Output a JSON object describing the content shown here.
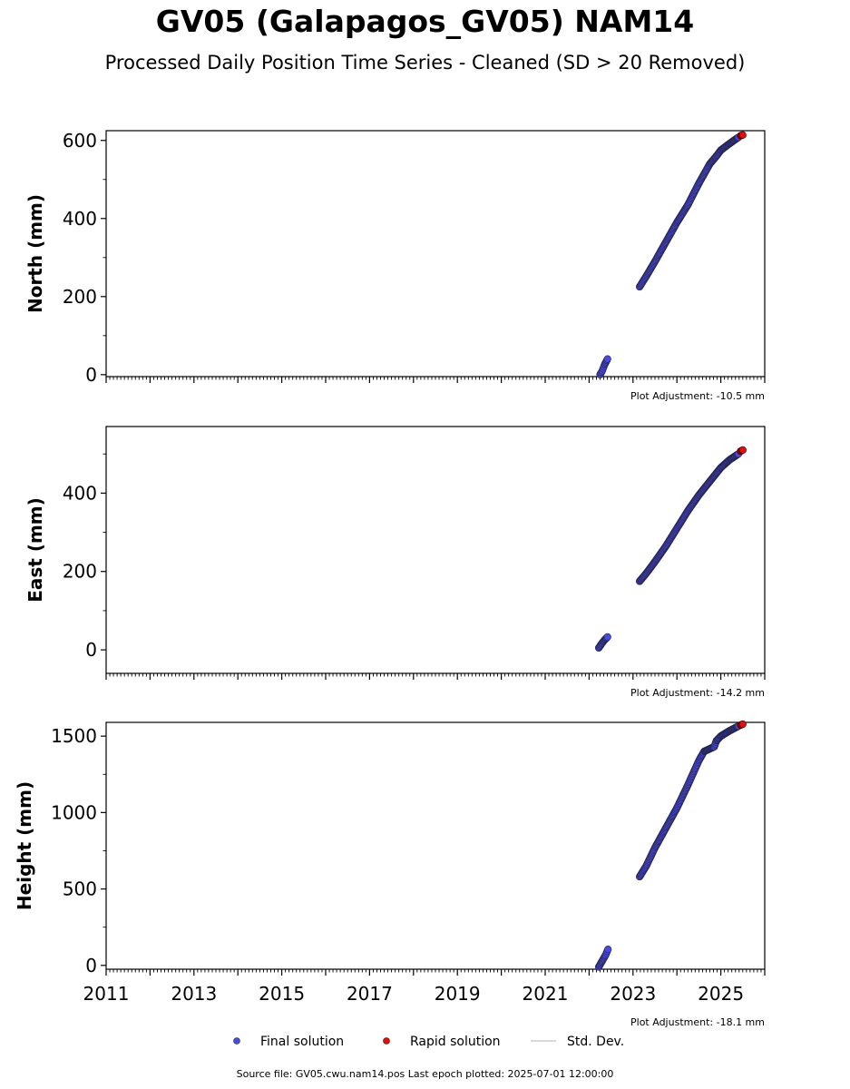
{
  "title": "GV05 (Galapagos_GV05) NAM14",
  "subtitle": "Processed Daily Position Time Series - Cleaned (SD > 20 Removed)",
  "footer": "Source file: GV05.cwu.nam14.pos  Last epoch plotted: 2025-07-01 12:00:00",
  "legend": {
    "final_label": "Final solution",
    "rapid_label": "Rapid solution",
    "std_label": "Std. Dev."
  },
  "colors": {
    "final": "#4a4adf",
    "rapid": "#e01010",
    "std": "#cccccc",
    "edge": "#222244"
  },
  "chart_data": [
    {
      "type": "scatter",
      "ylabel": "North (mm)",
      "adjustment": "Plot Adjustment: -10.5 mm",
      "xlim": [
        2011,
        2026
      ],
      "ylim": [
        -5,
        625
      ],
      "yticks": [
        0,
        200,
        400,
        600
      ],
      "ytick_labels": [
        "0",
        "200",
        "400",
        "600"
      ],
      "x_tick_labels_shown": false,
      "series": [
        {
          "role": "final",
          "segments": [
            [
              [
                2022.25,
                0
              ],
              [
                2022.3,
                10
              ],
              [
                2022.35,
                25
              ],
              [
                2022.42,
                40
              ]
            ],
            [
              [
                2023.15,
                225
              ],
              [
                2023.3,
                252
              ],
              [
                2023.5,
                290
              ],
              [
                2023.75,
                340
              ],
              [
                2024.0,
                390
              ],
              [
                2024.25,
                435
              ],
              [
                2024.5,
                490
              ],
              [
                2024.75,
                540
              ],
              [
                2024.9,
                560
              ],
              [
                2025.0,
                575
              ],
              [
                2025.2,
                592
              ],
              [
                2025.4,
                608
              ]
            ]
          ]
        },
        {
          "role": "rapid",
          "segments": [
            [
              [
                2025.45,
                612
              ],
              [
                2025.5,
                614
              ]
            ]
          ]
        }
      ]
    },
    {
      "type": "scatter",
      "ylabel": "East (mm)",
      "adjustment": "Plot Adjustment: -14.2 mm",
      "xlim": [
        2011,
        2026
      ],
      "ylim": [
        -60,
        570
      ],
      "yticks": [
        0,
        200,
        400
      ],
      "ytick_labels": [
        "0",
        "200",
        "400"
      ],
      "x_tick_labels_shown": false,
      "series": [
        {
          "role": "final",
          "segments": [
            [
              [
                2022.22,
                5
              ],
              [
                2022.28,
                15
              ],
              [
                2022.35,
                25
              ],
              [
                2022.42,
                33
              ]
            ],
            [
              [
                2023.15,
                175
              ],
              [
                2023.3,
                195
              ],
              [
                2023.5,
                225
              ],
              [
                2023.75,
                265
              ],
              [
                2024.0,
                310
              ],
              [
                2024.25,
                355
              ],
              [
                2024.5,
                395
              ],
              [
                2024.75,
                430
              ],
              [
                2025.0,
                465
              ],
              [
                2025.2,
                485
              ],
              [
                2025.4,
                500
              ]
            ]
          ]
        },
        {
          "role": "rapid",
          "segments": [
            [
              [
                2025.45,
                507
              ],
              [
                2025.5,
                510
              ]
            ]
          ]
        }
      ]
    },
    {
      "type": "scatter",
      "ylabel": "Height (mm)",
      "adjustment": "Plot Adjustment: -18.1 mm",
      "xlim": [
        2011,
        2026
      ],
      "ylim": [
        -25,
        1590
      ],
      "yticks": [
        0,
        500,
        1000,
        1500
      ],
      "ytick_labels": [
        "0",
        "500",
        "1000",
        "1500"
      ],
      "x_tick_labels_shown": true,
      "xticks": [
        2011,
        2013,
        2015,
        2017,
        2019,
        2021,
        2023,
        2025
      ],
      "xtick_labels": [
        "2011",
        "2013",
        "2015",
        "2017",
        "2019",
        "2021",
        "2023",
        "2025"
      ],
      "series": [
        {
          "role": "final",
          "segments": [
            [
              [
                2022.22,
                -10
              ],
              [
                2022.3,
                30
              ],
              [
                2022.38,
                70
              ],
              [
                2022.43,
                105
              ]
            ],
            [
              [
                2023.15,
                580
              ],
              [
                2023.3,
                650
              ],
              [
                2023.5,
                770
              ],
              [
                2023.75,
                900
              ],
              [
                2024.0,
                1030
              ],
              [
                2024.25,
                1180
              ],
              [
                2024.5,
                1340
              ],
              [
                2024.62,
                1400
              ],
              [
                2024.85,
                1430
              ],
              [
                2024.9,
                1470
              ],
              [
                2025.0,
                1500
              ],
              [
                2025.2,
                1535
              ],
              [
                2025.4,
                1565
              ]
            ]
          ]
        },
        {
          "role": "rapid",
          "segments": [
            [
              [
                2025.45,
                1572
              ],
              [
                2025.5,
                1578
              ]
            ]
          ]
        }
      ]
    }
  ]
}
